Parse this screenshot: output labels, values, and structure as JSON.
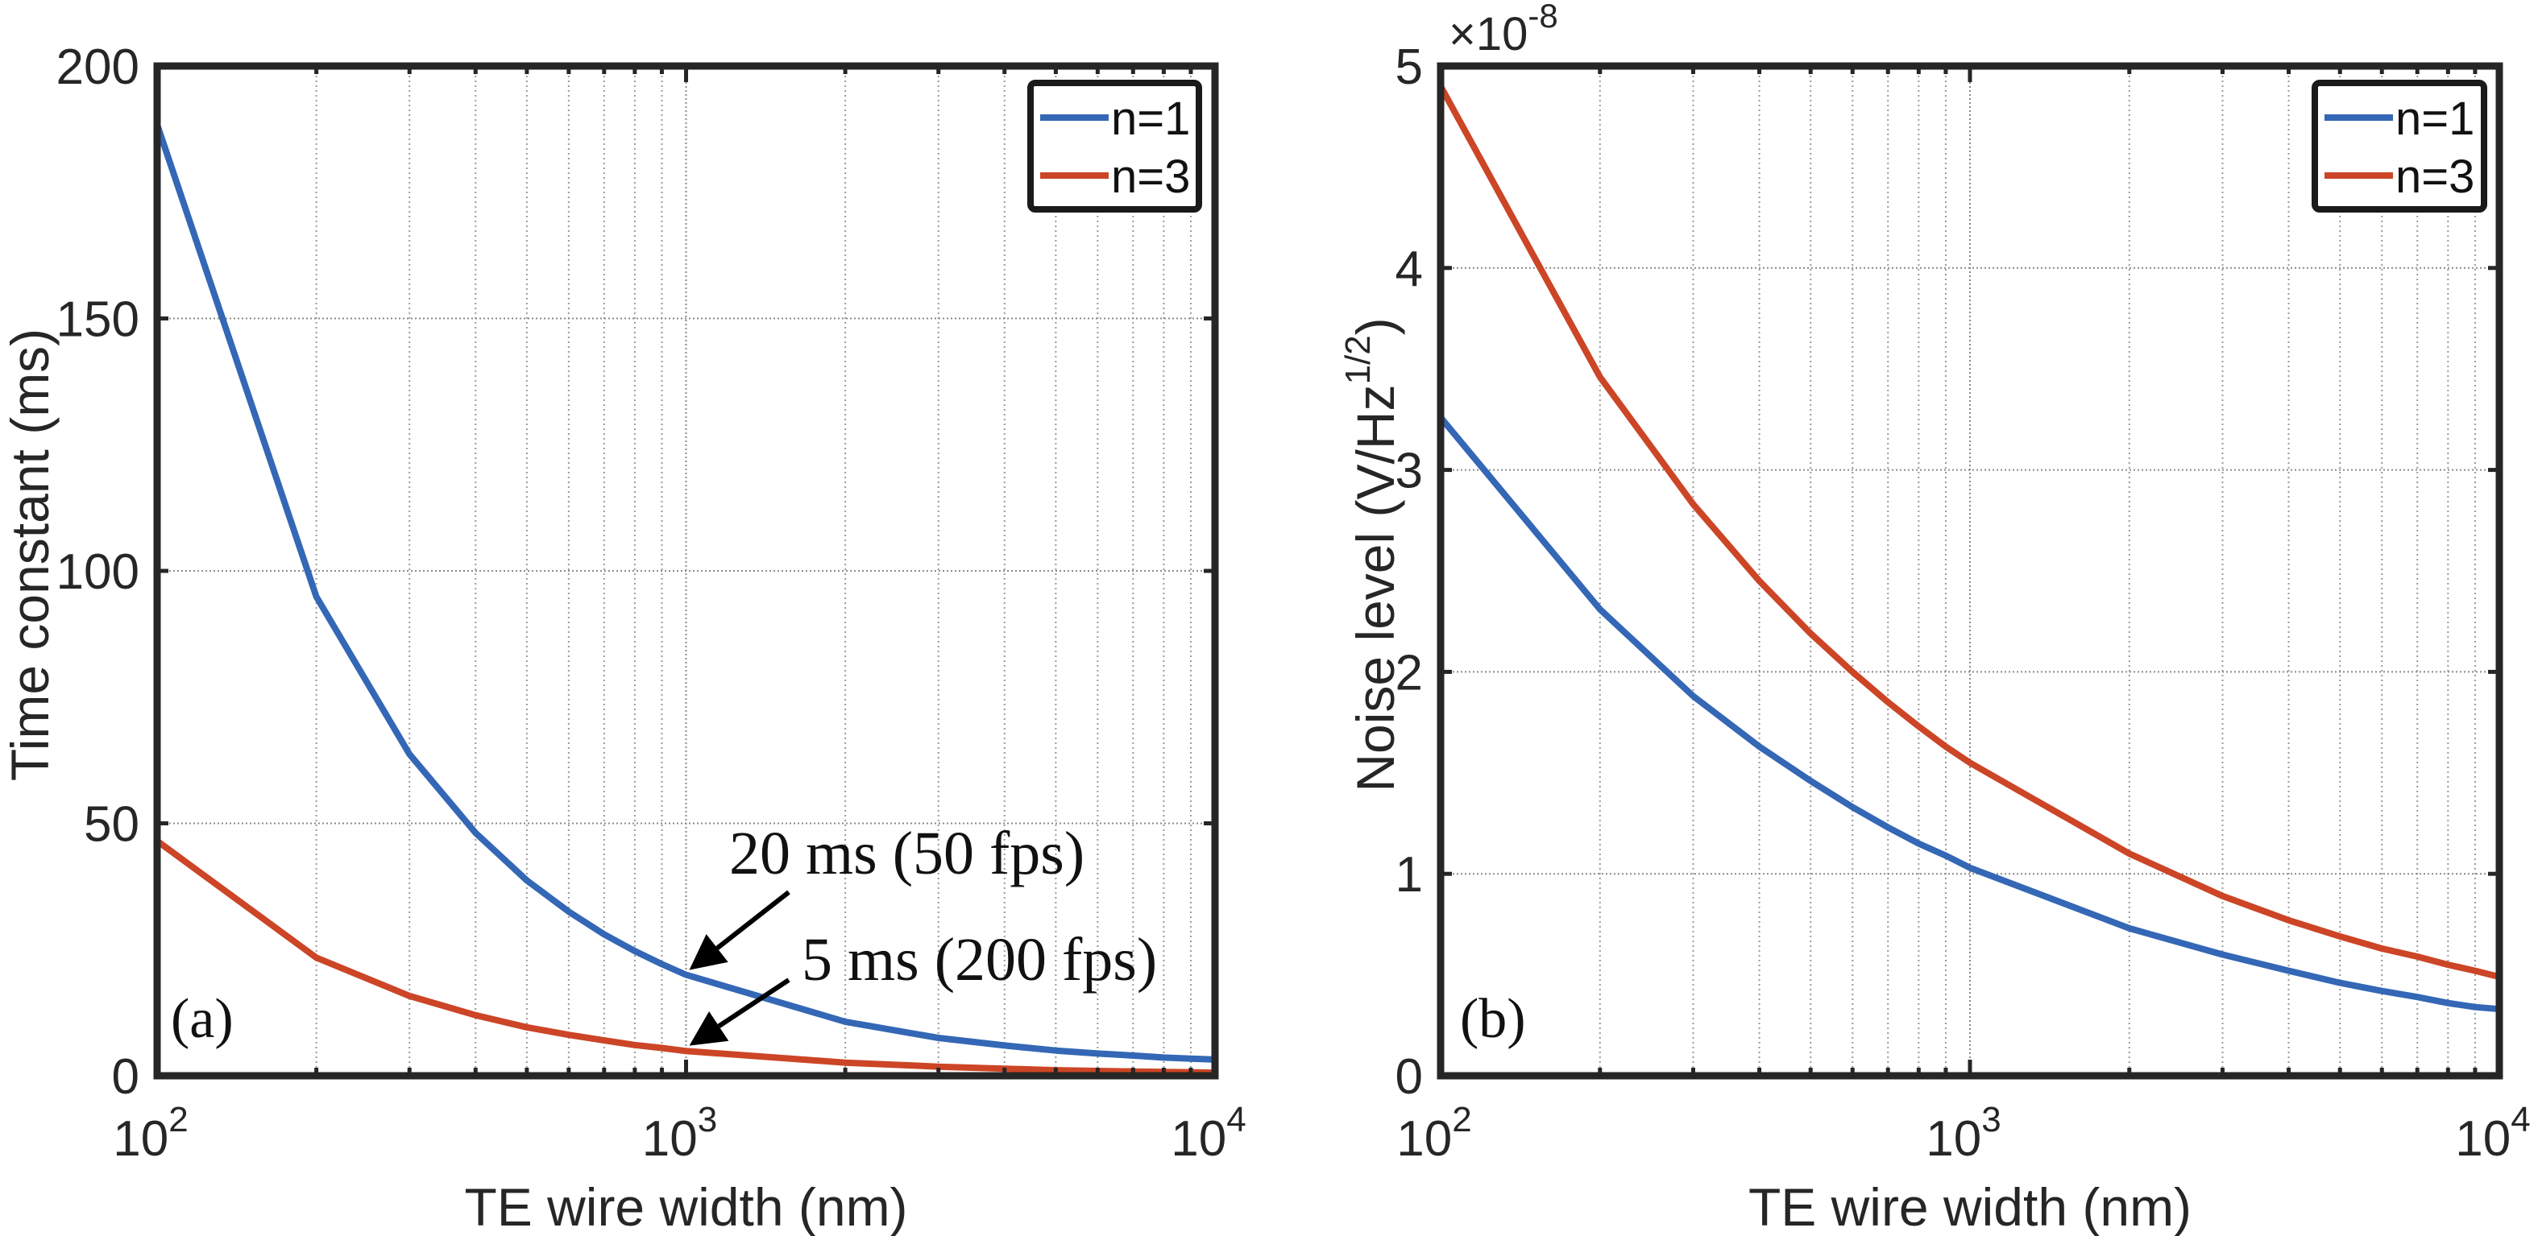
{
  "figure": {
    "panels": [
      "a",
      "b"
    ]
  },
  "chart_data": [
    {
      "type": "line",
      "panel_tag": "(a)",
      "title": "",
      "xlabel": "TE wire width (nm)",
      "ylabel": "Time constant (ms)",
      "xscale": "log",
      "xlim": [
        100,
        10000
      ],
      "ylim": [
        0,
        200
      ],
      "xticks": [
        100,
        1000,
        10000
      ],
      "xtick_labels": [
        {
          "base": "10",
          "exp": "2"
        },
        {
          "base": "10",
          "exp": "3"
        },
        {
          "base": "10",
          "exp": "4"
        }
      ],
      "yticks": [
        0,
        50,
        100,
        150,
        200
      ],
      "ytick_labels": [
        "0",
        "50",
        "100",
        "150",
        "200"
      ],
      "y_multiplier": null,
      "grid": true,
      "legend_position": "top-right",
      "x": [
        100,
        200,
        300,
        400,
        500,
        600,
        700,
        800,
        900,
        1000,
        2000,
        3000,
        4000,
        5000,
        6000,
        7000,
        8000,
        9000,
        10000
      ],
      "series": [
        {
          "name": "n=1",
          "color": "#3467b5",
          "values": [
            188.4,
            94.9,
            63.7,
            48.1,
            38.7,
            32.5,
            28.0,
            24.7,
            22.1,
            20.0,
            10.7,
            7.5,
            6.0,
            5.0,
            4.4,
            4.0,
            3.6,
            3.4,
            3.2
          ]
        },
        {
          "name": "n=3",
          "color": "#cc4526",
          "values": [
            46.5,
            23.4,
            15.8,
            12.0,
            9.6,
            8.1,
            7.0,
            6.1,
            5.5,
            4.9,
            2.6,
            1.8,
            1.4,
            1.1,
            0.95,
            0.85,
            0.75,
            0.7,
            0.6
          ]
        }
      ],
      "annotations": [
        {
          "text": "20 ms (50 fps)",
          "points_to": {
            "x": 1000,
            "y": 20
          }
        },
        {
          "text": "5 ms (200 fps)",
          "points_to": {
            "x": 1000,
            "y": 5
          }
        }
      ]
    },
    {
      "type": "line",
      "panel_tag": "(b)",
      "title": "",
      "xlabel": "TE wire width (nm)",
      "ylabel": "Noise level (V/Hz",
      "ylabel_sup": "1/2",
      "ylabel_close": ")",
      "xscale": "log",
      "xlim": [
        100,
        10000
      ],
      "ylim": [
        0,
        5e-08
      ],
      "xticks": [
        100,
        1000,
        10000
      ],
      "xtick_labels": [
        {
          "base": "10",
          "exp": "2"
        },
        {
          "base": "10",
          "exp": "3"
        },
        {
          "base": "10",
          "exp": "4"
        }
      ],
      "yticks": [
        0,
        1,
        2,
        3,
        4,
        5
      ],
      "ytick_labels": [
        "0",
        "1",
        "2",
        "3",
        "4",
        "5"
      ],
      "y_multiplier": {
        "prefix": "×10",
        "exp": "-8"
      },
      "grid": true,
      "legend_position": "top-right",
      "x": [
        100,
        200,
        300,
        400,
        500,
        600,
        700,
        800,
        900,
        1000,
        2000,
        3000,
        4000,
        5000,
        6000,
        7000,
        8000,
        9000,
        10000
      ],
      "series": [
        {
          "name": "n=1",
          "color": "#3467b5",
          "unit_scale": 1e-08,
          "values": [
            3.26,
            2.31,
            1.88,
            1.63,
            1.46,
            1.33,
            1.23,
            1.15,
            1.09,
            1.03,
            0.73,
            0.6,
            0.52,
            0.46,
            0.42,
            0.39,
            0.36,
            0.34,
            0.33
          ]
        },
        {
          "name": "n=3",
          "color": "#cc4526",
          "unit_scale": 1e-08,
          "values": [
            4.9,
            3.46,
            2.83,
            2.45,
            2.19,
            2.0,
            1.85,
            1.73,
            1.63,
            1.55,
            1.1,
            0.89,
            0.77,
            0.69,
            0.63,
            0.59,
            0.55,
            0.52,
            0.49
          ]
        }
      ],
      "annotations": []
    }
  ]
}
